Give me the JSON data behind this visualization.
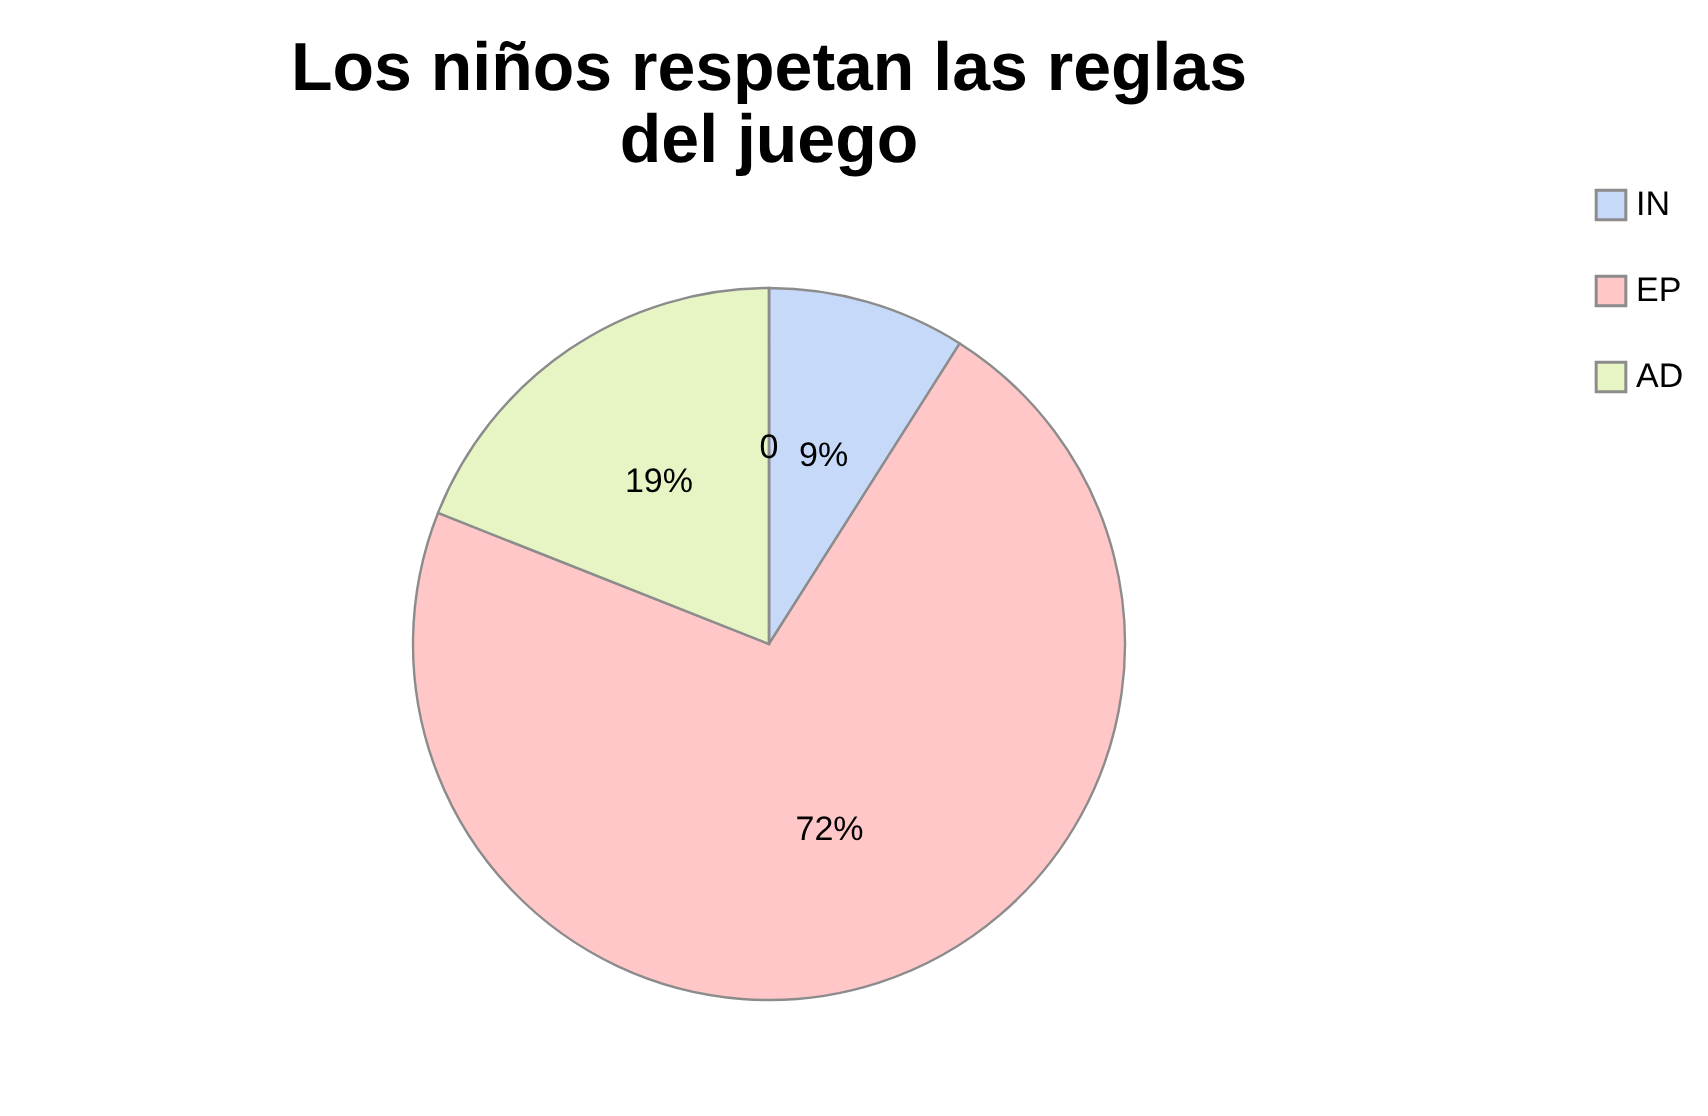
{
  "chart_data": {
    "type": "pie",
    "title": "Los niños respetan las reglas del juego",
    "categories": [
      "IN",
      "EP",
      "AD",
      null
    ],
    "values": [
      9,
      72,
      19,
      0
    ],
    "colors": [
      "#c6d9f8",
      "#ffc7c7",
      "#e6f5c3",
      "#bfbfbf"
    ],
    "value_labels": [
      "9%",
      "72%",
      "19%",
      "0"
    ],
    "legend": "right"
  }
}
